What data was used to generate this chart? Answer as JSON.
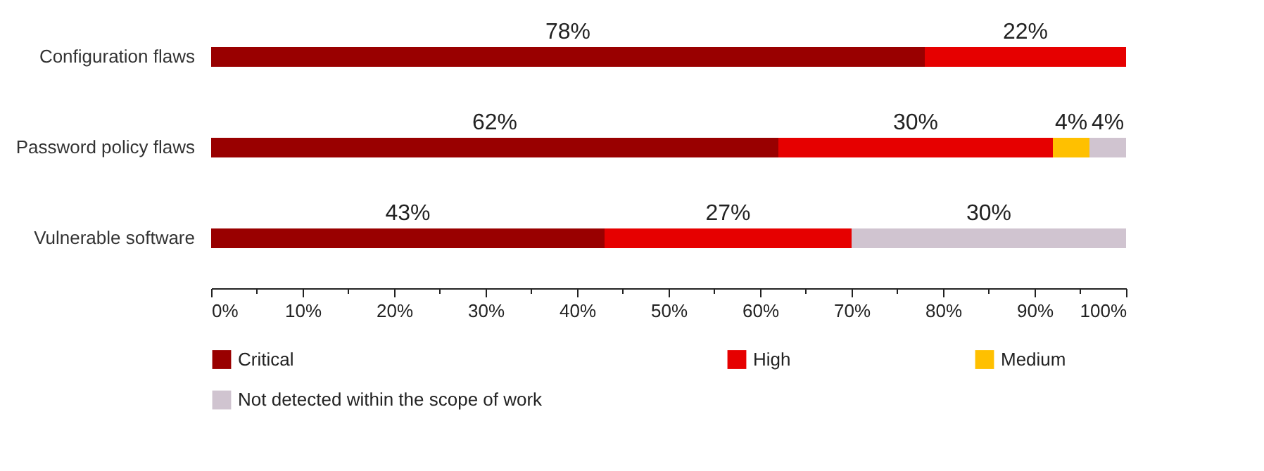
{
  "chart_data": {
    "type": "bar",
    "orientation": "horizontal",
    "stacked": true,
    "categories": [
      "Configuration flaws",
      "Password policy flaws",
      "Vulnerable software"
    ],
    "series": [
      {
        "name": "Critical",
        "color": "#990000",
        "values": [
          78,
          62,
          43
        ],
        "value_labels": [
          "78%",
          "62%",
          "43%"
        ]
      },
      {
        "name": "High",
        "color": "#e60000",
        "values": [
          22,
          30,
          27
        ],
        "value_labels": [
          "22%",
          "30%",
          "27%"
        ]
      },
      {
        "name": "Medium",
        "color": "#ffc000",
        "values": [
          null,
          4,
          null
        ],
        "value_labels": [
          null,
          "4%",
          null
        ]
      },
      {
        "name": "Not detected within the scope of work",
        "color": "#d0c4d0",
        "values": [
          null,
          4,
          30
        ],
        "value_labels": [
          null,
          "4%",
          "30%"
        ]
      }
    ],
    "xlim": [
      0,
      100
    ],
    "xticks": [
      {
        "value": 0,
        "label": "0%"
      },
      {
        "value": 5,
        "label": null
      },
      {
        "value": 10,
        "label": "10%"
      },
      {
        "value": 15,
        "label": null
      },
      {
        "value": 20,
        "label": "20%"
      },
      {
        "value": 25,
        "label": null
      },
      {
        "value": 30,
        "label": "30%"
      },
      {
        "value": 35,
        "label": null
      },
      {
        "value": 40,
        "label": "40%"
      },
      {
        "value": 45,
        "label": null
      },
      {
        "value": 50,
        "label": "50%"
      },
      {
        "value": 55,
        "label": null
      },
      {
        "value": 60,
        "label": "60%"
      },
      {
        "value": 65,
        "label": null
      },
      {
        "value": 70,
        "label": "70%"
      },
      {
        "value": 75,
        "label": null
      },
      {
        "value": 80,
        "label": "80%"
      },
      {
        "value": 85,
        "label": null
      },
      {
        "value": 90,
        "label": "90%"
      },
      {
        "value": 95,
        "label": null
      },
      {
        "value": 100,
        "label": "100%"
      }
    ],
    "grid": false,
    "legend": "bottom"
  }
}
